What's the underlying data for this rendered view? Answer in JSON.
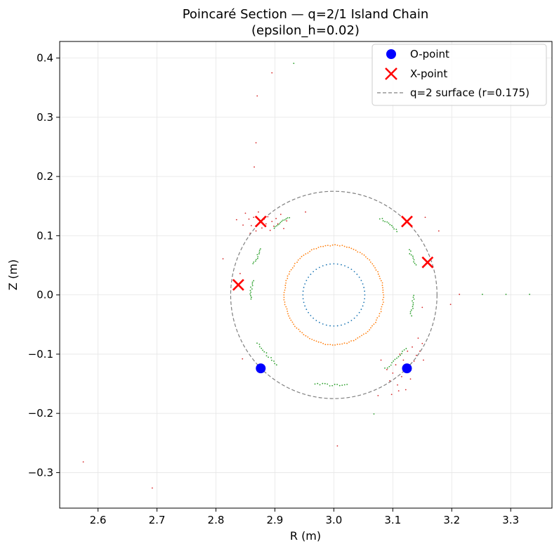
{
  "chart_data": {
    "type": "scatter",
    "title": "Poincaré Section — q=2/1 Island Chain",
    "subtitle": "(epsilon_h=0.02)",
    "xlabel": "R (m)",
    "ylabel": "Z (m)",
    "xlim": [
      2.535,
      3.37
    ],
    "ylim": [
      -0.36,
      0.428
    ],
    "xticks": [
      2.6,
      2.7,
      2.8,
      2.9,
      3.0,
      3.1,
      3.2,
      3.3
    ],
    "xtick_labels": [
      "2.6",
      "2.7",
      "2.8",
      "2.9",
      "3.0",
      "3.1",
      "3.2",
      "3.3"
    ],
    "yticks": [
      -0.3,
      -0.2,
      -0.1,
      0.0,
      0.1,
      0.2,
      0.3,
      0.4
    ],
    "ytick_labels": [
      "−0.3",
      "−0.2",
      "−0.1",
      "0.0",
      "0.1",
      "0.2",
      "0.3",
      "0.4"
    ],
    "grid": true,
    "legend_position": "top-right",
    "colors": {
      "trace_1": "#1f77b4",
      "trace_2": "#ff7f0e",
      "trace_3": "#2ca02c",
      "trace_4": "#d62728",
      "o_point": "#0000ff",
      "x_point": "#ff0000",
      "surface": "#808080"
    },
    "orbit_traces": [
      {
        "name": "",
        "color": "#1f77b4",
        "arcs": [
          {
            "cx": 3.0,
            "cz": 0.0,
            "r": 0.0525,
            "from_deg": 0,
            "to_deg": 360,
            "count": 52,
            "jitter": 0.0
          }
        ],
        "scatter": []
      },
      {
        "name": "",
        "color": "#ff7f0e",
        "arcs": [
          {
            "cx": 3.0,
            "cz": 0.0,
            "r": 0.084,
            "from_deg": 0,
            "to_deg": 360,
            "count": 130,
            "jitter": 0.001
          }
        ],
        "scatter": []
      },
      {
        "name": "",
        "color": "#2ca02c",
        "arcs": [
          {
            "cx": 3.0,
            "cz": 0.0,
            "r": 0.152,
            "from_deg": 45,
            "to_deg": 60,
            "count": 12,
            "jitter": 0.002
          },
          {
            "cx": 3.0,
            "cz": 0.0,
            "r": 0.152,
            "from_deg": 120,
            "to_deg": 133,
            "count": 12,
            "jitter": 0.002
          },
          {
            "cx": 3.0,
            "cz": 0.0,
            "r": 0.145,
            "from_deg": 148,
            "to_deg": 160,
            "count": 11,
            "jitter": 0.002
          },
          {
            "cx": 3.0,
            "cz": 0.0,
            "r": 0.14,
            "from_deg": 170,
            "to_deg": 184,
            "count": 12,
            "jitter": 0.002
          },
          {
            "cx": 3.0,
            "cz": 0.0,
            "r": 0.152,
            "from_deg": 212,
            "to_deg": 232,
            "count": 14,
            "jitter": 0.002
          },
          {
            "cx": 3.0,
            "cz": 0.0,
            "r": 0.152,
            "from_deg": 258,
            "to_deg": 280,
            "count": 14,
            "jitter": 0.002
          },
          {
            "cx": 3.0,
            "cz": 0.0,
            "r": 0.152,
            "from_deg": 305,
            "to_deg": 325,
            "count": 14,
            "jitter": 0.002
          },
          {
            "cx": 3.0,
            "cz": 0.0,
            "r": 0.135,
            "from_deg": 345,
            "to_deg": 361,
            "count": 12,
            "jitter": 0.002
          },
          {
            "cx": 3.0,
            "cz": 0.0,
            "r": 0.148,
            "from_deg": 20,
            "to_deg": 32,
            "count": 10,
            "jitter": 0.002
          }
        ],
        "scatter": [
          {
            "x": 2.932,
            "z": 0.391
          },
          {
            "x": 3.252,
            "z": 0.001
          },
          {
            "x": 3.292,
            "z": 0.001
          },
          {
            "x": 3.332,
            "z": 0.001
          },
          {
            "x": 3.068,
            "z": -0.201
          }
        ]
      },
      {
        "name": "",
        "color": "#d62728",
        "arcs": [],
        "scatter": [
          {
            "x": 2.895,
            "z": 0.375
          },
          {
            "x": 2.87,
            "z": 0.336
          },
          {
            "x": 2.868,
            "z": 0.257
          },
          {
            "x": 2.865,
            "z": 0.216
          },
          {
            "x": 2.812,
            "z": 0.061
          },
          {
            "x": 2.835,
            "z": 0.127
          },
          {
            "x": 2.85,
            "z": 0.138
          },
          {
            "x": 2.856,
            "z": 0.128
          },
          {
            "x": 2.86,
            "z": 0.117
          },
          {
            "x": 2.864,
            "z": 0.131
          },
          {
            "x": 2.868,
            "z": 0.108
          },
          {
            "x": 2.872,
            "z": 0.14
          },
          {
            "x": 2.878,
            "z": 0.113
          },
          {
            "x": 2.882,
            "z": 0.128
          },
          {
            "x": 2.885,
            "z": 0.12
          },
          {
            "x": 2.888,
            "z": 0.132
          },
          {
            "x": 2.892,
            "z": 0.109
          },
          {
            "x": 2.895,
            "z": 0.124
          },
          {
            "x": 2.898,
            "z": 0.116
          },
          {
            "x": 2.902,
            "z": 0.129
          },
          {
            "x": 2.905,
            "z": 0.12
          },
          {
            "x": 2.91,
            "z": 0.136
          },
          {
            "x": 2.915,
            "z": 0.112
          },
          {
            "x": 2.92,
            "z": 0.125
          },
          {
            "x": 2.952,
            "z": 0.14
          },
          {
            "x": 2.846,
            "z": 0.118
          },
          {
            "x": 2.858,
            "z": 0.104
          },
          {
            "x": 2.841,
            "z": 0.036
          },
          {
            "x": 2.845,
            "z": -0.108
          },
          {
            "x": 3.155,
            "z": 0.131
          },
          {
            "x": 3.178,
            "z": 0.108
          },
          {
            "x": 3.15,
            "z": -0.021
          },
          {
            "x": 3.213,
            "z": 0.001
          },
          {
            "x": 3.198,
            "z": -0.016
          },
          {
            "x": 3.08,
            "z": -0.11
          },
          {
            "x": 3.09,
            "z": -0.126
          },
          {
            "x": 3.095,
            "z": -0.145
          },
          {
            "x": 3.1,
            "z": -0.132
          },
          {
            "x": 3.105,
            "z": -0.118
          },
          {
            "x": 3.108,
            "z": -0.152
          },
          {
            "x": 3.112,
            "z": -0.1
          },
          {
            "x": 3.115,
            "z": -0.138
          },
          {
            "x": 3.118,
            "z": -0.11
          },
          {
            "x": 3.122,
            "z": -0.16
          },
          {
            "x": 3.125,
            "z": -0.095
          },
          {
            "x": 3.128,
            "z": -0.128
          },
          {
            "x": 3.13,
            "z": -0.142
          },
          {
            "x": 3.133,
            "z": -0.088
          },
          {
            "x": 3.136,
            "z": -0.112
          },
          {
            "x": 3.14,
            "z": -0.102
          },
          {
            "x": 3.143,
            "z": -0.073
          },
          {
            "x": 3.146,
            "z": -0.095
          },
          {
            "x": 3.15,
            "z": -0.082
          },
          {
            "x": 3.152,
            "z": -0.11
          },
          {
            "x": 3.098,
            "z": -0.168
          },
          {
            "x": 3.11,
            "z": -0.162
          },
          {
            "x": 3.075,
            "z": -0.17
          },
          {
            "x": 3.006,
            "z": -0.255
          },
          {
            "x": 2.575,
            "z": -0.282
          },
          {
            "x": 2.692,
            "z": -0.326
          }
        ]
      }
    ],
    "o_points": {
      "name": "O-point",
      "points": [
        {
          "x": 2.876,
          "z": -0.124
        },
        {
          "x": 3.124,
          "z": -0.124
        }
      ]
    },
    "x_points": {
      "name": "X-point",
      "points": [
        {
          "x": 2.876,
          "z": 0.124
        },
        {
          "x": 3.124,
          "z": 0.124
        },
        {
          "x": 2.838,
          "z": 0.017
        },
        {
          "x": 3.159,
          "z": 0.055
        }
      ]
    },
    "resonant_surface": {
      "name": "q=2 surface (r=0.175)",
      "r0": 3.0,
      "z0": 0.0,
      "r": 0.175
    }
  }
}
